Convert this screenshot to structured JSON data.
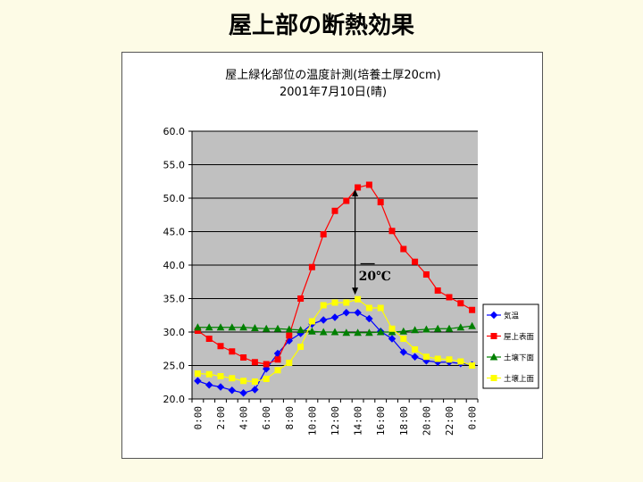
{
  "slide": {
    "title": "屋上部の断熱効果"
  },
  "chart_data": {
    "type": "line",
    "title": "屋上緑化部位の温度計測(培養土厚20cm)",
    "subtitle": "2001年7月10日(晴)",
    "xlabel": "",
    "ylabel": "",
    "ylim": [
      20,
      60
    ],
    "yticks": [
      "20.0",
      "25.0",
      "30.0",
      "35.0",
      "40.0",
      "45.0",
      "50.0",
      "55.0",
      "60.0"
    ],
    "x": [
      "0:00",
      "1:00",
      "2:00",
      "3:00",
      "4:00",
      "5:00",
      "6:00",
      "7:00",
      "8:00",
      "9:00",
      "10:00",
      "11:00",
      "12:00",
      "13:00",
      "14:00",
      "15:00",
      "16:00",
      "17:00",
      "18:00",
      "19:00",
      "20:00",
      "21:00",
      "22:00",
      "23:00",
      "0:00"
    ],
    "xtick_labels": [
      "0:00",
      "",
      "2:00",
      "",
      "4:00",
      "",
      "6:00",
      "",
      "8:00",
      "",
      "10:00",
      "",
      "12:00",
      "",
      "14:00",
      "",
      "16:00",
      "",
      "18:00",
      "",
      "20:00",
      "",
      "22:00",
      "",
      "0:00"
    ],
    "grid": true,
    "legend_position": "right",
    "series": [
      {
        "name": "気温",
        "color": "#0000ff",
        "marker": "diamond",
        "values": [
          22.7,
          22.1,
          21.8,
          21.3,
          20.9,
          21.4,
          24.5,
          26.8,
          28.7,
          29.8,
          31.2,
          31.8,
          32.2,
          32.9,
          32.9,
          32.0,
          30.1,
          29.0,
          27.0,
          26.3,
          25.7,
          25.5,
          25.5,
          25.3,
          25.1
        ]
      },
      {
        "name": "屋上表面",
        "color": "#ff0000",
        "marker": "square",
        "values": [
          30.2,
          29.0,
          27.9,
          27.1,
          26.2,
          25.5,
          25.2,
          25.9,
          29.5,
          35.0,
          39.7,
          44.6,
          48.1,
          49.6,
          51.6,
          52.0,
          49.4,
          45.1,
          42.4,
          40.5,
          38.6,
          36.2,
          35.2,
          34.3,
          33.3
        ]
      },
      {
        "name": "土壌下面",
        "color": "#008000",
        "marker": "triangle",
        "values": [
          30.7,
          30.7,
          30.7,
          30.7,
          30.7,
          30.6,
          30.5,
          30.5,
          30.4,
          30.3,
          30.1,
          30.0,
          30.0,
          29.9,
          29.9,
          29.9,
          30.0,
          30.0,
          30.1,
          30.3,
          30.4,
          30.5,
          30.5,
          30.7,
          30.9
        ]
      },
      {
        "name": "土壌上面",
        "color": "#ffff00",
        "marker": "square",
        "values": [
          23.8,
          23.7,
          23.4,
          23.1,
          22.7,
          22.6,
          23.0,
          24.3,
          25.4,
          27.8,
          31.6,
          34.0,
          34.4,
          34.4,
          34.9,
          33.6,
          33.6,
          30.5,
          29.0,
          27.4,
          26.3,
          26.0,
          25.9,
          25.6,
          25.0
        ]
      }
    ],
    "annotation": {
      "text": "20℃"
    }
  }
}
